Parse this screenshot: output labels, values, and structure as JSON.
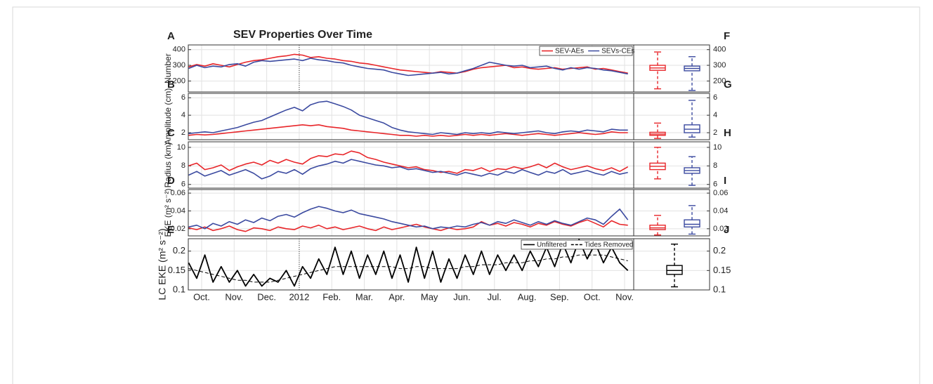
{
  "chart_data": [
    {
      "type": "line",
      "title": "SEV Properties Over Time",
      "letter": "A",
      "box_letter": "F",
      "ylabel": "Number",
      "ylim": [
        130,
        430
      ],
      "yticks": [
        200,
        300,
        400
      ],
      "xlim": [
        0.59,
        14.28
      ],
      "xticks": [
        {
          "value": 1,
          "label": "Oct."
        },
        {
          "value": 2,
          "label": "Nov."
        },
        {
          "value": 3,
          "label": "Dec."
        },
        {
          "value": 4,
          "label": "2012"
        },
        {
          "value": 5,
          "label": "Feb."
        },
        {
          "value": 6,
          "label": "Mar."
        },
        {
          "value": 7,
          "label": "Apr."
        },
        {
          "value": 8,
          "label": "May"
        },
        {
          "value": 9,
          "label": "Jun."
        },
        {
          "value": 10,
          "label": "Jul."
        },
        {
          "value": 11,
          "label": "Aug."
        },
        {
          "value": 12,
          "label": "Sep."
        },
        {
          "value": 13,
          "label": "Oct."
        },
        {
          "value": 14,
          "label": "Nov."
        }
      ],
      "vline": 4,
      "legend": "upper right",
      "x": [
        0.6,
        0.85,
        1.1,
        1.35,
        1.6,
        1.85,
        2.1,
        2.35,
        2.6,
        2.85,
        3.1,
        3.35,
        3.6,
        3.85,
        4.1,
        4.35,
        4.6,
        4.85,
        5.1,
        5.35,
        5.6,
        5.85,
        6.1,
        6.35,
        6.6,
        6.85,
        7.1,
        7.35,
        7.6,
        7.85,
        8.1,
        8.35,
        8.6,
        8.85,
        9.1,
        9.35,
        9.6,
        9.85,
        10.1,
        10.35,
        10.6,
        10.85,
        11.1,
        11.35,
        11.6,
        11.85,
        12.1,
        12.35,
        12.6,
        12.85,
        13.1,
        13.35,
        13.6,
        13.85,
        14.1
      ],
      "series": [
        {
          "name": "SEV-AEs",
          "color": "#e8262a",
          "stats": [
            150,
            268,
            283,
            300,
            385
          ],
          "values": [
            290,
            305,
            295,
            310,
            300,
            290,
            305,
            320,
            330,
            335,
            345,
            355,
            360,
            370,
            365,
            350,
            355,
            345,
            340,
            330,
            325,
            315,
            310,
            300,
            290,
            280,
            270,
            265,
            260,
            255,
            250,
            260,
            255,
            250,
            260,
            275,
            285,
            290,
            295,
            300,
            285,
            290,
            280,
            275,
            280,
            285,
            275,
            280,
            285,
            290,
            275,
            280,
            270,
            260,
            250
          ]
        },
        {
          "name": "SEVs-CEs",
          "color": "#3b4aa0",
          "stats": [
            140,
            265,
            280,
            295,
            355
          ],
          "values": [
            280,
            300,
            285,
            295,
            290,
            305,
            310,
            295,
            320,
            330,
            325,
            330,
            335,
            340,
            330,
            345,
            335,
            330,
            320,
            315,
            300,
            290,
            280,
            275,
            270,
            255,
            245,
            235,
            240,
            245,
            250,
            255,
            245,
            250,
            265,
            280,
            300,
            320,
            310,
            300,
            295,
            300,
            285,
            290,
            295,
            280,
            270,
            285,
            275,
            285,
            280,
            270,
            265,
            255,
            245
          ]
        }
      ]
    },
    {
      "type": "line",
      "letter": "B",
      "box_letter": "G",
      "ylabel": "Amplitude (cm)",
      "ylim": [
        1.2,
        6.5
      ],
      "yticks": [
        2,
        4,
        6
      ],
      "xlim": [
        0.59,
        14.28
      ],
      "xticks": [
        1,
        2,
        3,
        4,
        5,
        6,
        7,
        8,
        9,
        10,
        11,
        12,
        13,
        14
      ],
      "x": [
        0.6,
        0.85,
        1.1,
        1.35,
        1.6,
        1.85,
        2.1,
        2.35,
        2.6,
        2.85,
        3.1,
        3.35,
        3.6,
        3.85,
        4.1,
        4.35,
        4.6,
        4.85,
        5.1,
        5.35,
        5.6,
        5.85,
        6.1,
        6.35,
        6.6,
        6.85,
        7.1,
        7.35,
        7.6,
        7.85,
        8.1,
        8.35,
        8.6,
        8.85,
        9.1,
        9.35,
        9.6,
        9.85,
        10.1,
        10.35,
        10.6,
        10.85,
        11.1,
        11.35,
        11.6,
        11.85,
        12.1,
        12.35,
        12.6,
        12.85,
        13.1,
        13.35,
        13.6,
        13.85,
        14.1
      ],
      "series": [
        {
          "color": "#e8262a",
          "stats": [
            1.35,
            1.7,
            1.85,
            2.05,
            3.1
          ],
          "values": [
            1.7,
            1.8,
            1.75,
            1.8,
            1.9,
            2.0,
            2.1,
            2.2,
            2.3,
            2.4,
            2.5,
            2.6,
            2.7,
            2.8,
            2.9,
            2.8,
            2.9,
            2.7,
            2.6,
            2.5,
            2.3,
            2.2,
            2.1,
            2.0,
            1.9,
            1.8,
            1.7,
            1.7,
            1.6,
            1.7,
            1.6,
            1.7,
            1.6,
            1.7,
            1.8,
            1.7,
            1.8,
            1.7,
            1.8,
            1.9,
            1.8,
            1.7,
            1.8,
            1.9,
            1.8,
            1.7,
            1.8,
            1.9,
            2.0,
            1.9,
            1.8,
            1.9,
            2.1,
            2.0,
            2.0
          ]
        },
        {
          "color": "#3b4aa0",
          "stats": [
            1.5,
            2.0,
            2.4,
            2.9,
            5.7
          ],
          "values": [
            1.9,
            2.0,
            2.1,
            2.0,
            2.2,
            2.4,
            2.6,
            2.9,
            3.2,
            3.4,
            3.8,
            4.2,
            4.6,
            4.9,
            4.5,
            5.2,
            5.5,
            5.6,
            5.3,
            5.0,
            4.6,
            4.0,
            3.7,
            3.4,
            3.1,
            2.6,
            2.3,
            2.1,
            2.0,
            1.9,
            1.8,
            2.0,
            1.9,
            1.8,
            2.0,
            1.9,
            2.0,
            1.9,
            2.1,
            2.0,
            1.9,
            2.0,
            2.1,
            2.2,
            2.0,
            1.9,
            2.1,
            2.2,
            2.1,
            2.3,
            2.2,
            2.1,
            2.4,
            2.3,
            2.3
          ]
        }
      ]
    },
    {
      "type": "line",
      "letter": "C",
      "box_letter": "H",
      "ylabel": "Radius (km)",
      "ylim": [
        5.6,
        10.6
      ],
      "yticks": [
        6,
        8,
        10
      ],
      "xlim": [
        0.59,
        14.28
      ],
      "xticks": [
        1,
        2,
        3,
        4,
        5,
        6,
        7,
        8,
        9,
        10,
        11,
        12,
        13,
        14
      ],
      "x": [
        0.6,
        0.85,
        1.1,
        1.35,
        1.6,
        1.85,
        2.1,
        2.35,
        2.6,
        2.85,
        3.1,
        3.35,
        3.6,
        3.85,
        4.1,
        4.35,
        4.6,
        4.85,
        5.1,
        5.35,
        5.6,
        5.85,
        6.1,
        6.35,
        6.6,
        6.85,
        7.1,
        7.35,
        7.6,
        7.85,
        8.1,
        8.35,
        8.6,
        8.85,
        9.1,
        9.35,
        9.6,
        9.85,
        10.1,
        10.35,
        10.6,
        10.85,
        11.1,
        11.35,
        11.6,
        11.85,
        12.1,
        12.35,
        12.6,
        12.85,
        13.1,
        13.35,
        13.6,
        13.85,
        14.1
      ],
      "series": [
        {
          "color": "#e8262a",
          "stats": [
            6.6,
            7.6,
            7.95,
            8.3,
            10.0
          ],
          "values": [
            8.0,
            8.3,
            7.6,
            7.8,
            8.1,
            7.5,
            7.9,
            8.2,
            8.4,
            8.1,
            8.6,
            8.3,
            8.7,
            8.4,
            8.2,
            8.8,
            9.1,
            9.0,
            9.3,
            9.2,
            9.6,
            9.4,
            8.9,
            8.7,
            8.4,
            8.2,
            8.0,
            7.8,
            7.9,
            7.6,
            7.5,
            7.3,
            7.4,
            7.2,
            7.6,
            7.5,
            7.8,
            7.4,
            7.7,
            7.6,
            7.9,
            7.7,
            7.9,
            8.2,
            7.8,
            8.3,
            7.9,
            7.6,
            7.8,
            8.0,
            7.7,
            7.5,
            7.8,
            7.4,
            7.9
          ]
        },
        {
          "color": "#3b4aa0",
          "stats": [
            5.9,
            7.2,
            7.5,
            7.8,
            9.0
          ],
          "values": [
            7.0,
            7.4,
            6.9,
            7.2,
            7.5,
            7.0,
            7.3,
            7.6,
            7.2,
            6.6,
            6.9,
            7.4,
            7.2,
            7.6,
            7.1,
            7.7,
            8.0,
            8.2,
            8.5,
            8.3,
            8.7,
            8.5,
            8.3,
            8.1,
            8.0,
            7.8,
            7.9,
            7.6,
            7.7,
            7.5,
            7.3,
            7.4,
            7.2,
            7.0,
            7.3,
            7.1,
            6.9,
            7.2,
            7.0,
            7.4,
            7.2,
            7.6,
            7.3,
            7.0,
            7.4,
            7.2,
            7.6,
            7.1,
            7.3,
            7.5,
            7.2,
            7.0,
            7.4,
            7.1,
            7.3
          ]
        }
      ]
    },
    {
      "type": "line",
      "letter": "D",
      "box_letter": "I",
      "ylabel": "EKE (m² s⁻²)",
      "ylim": [
        0.012,
        0.064
      ],
      "yticks": [
        0.02,
        0.04,
        0.06
      ],
      "xlim": [
        0.59,
        14.28
      ],
      "xticks": [
        1,
        2,
        3,
        4,
        5,
        6,
        7,
        8,
        9,
        10,
        11,
        12,
        13,
        14
      ],
      "x": [
        0.6,
        0.85,
        1.1,
        1.35,
        1.6,
        1.85,
        2.1,
        2.35,
        2.6,
        2.85,
        3.1,
        3.35,
        3.6,
        3.85,
        4.1,
        4.35,
        4.6,
        4.85,
        5.1,
        5.35,
        5.6,
        5.85,
        6.1,
        6.35,
        6.6,
        6.85,
        7.1,
        7.35,
        7.6,
        7.85,
        8.1,
        8.35,
        8.6,
        8.85,
        9.1,
        9.35,
        9.6,
        9.85,
        10.1,
        10.35,
        10.6,
        10.85,
        11.1,
        11.35,
        11.6,
        11.85,
        12.1,
        12.35,
        12.6,
        12.85,
        13.1,
        13.35,
        13.6,
        13.85,
        14.1
      ],
      "series": [
        {
          "color": "#e8262a",
          "stats": [
            0.013,
            0.019,
            0.021,
            0.024,
            0.035
          ],
          "values": [
            0.021,
            0.019,
            0.022,
            0.018,
            0.02,
            0.023,
            0.019,
            0.017,
            0.021,
            0.02,
            0.018,
            0.022,
            0.02,
            0.019,
            0.023,
            0.021,
            0.024,
            0.02,
            0.022,
            0.019,
            0.021,
            0.023,
            0.02,
            0.018,
            0.022,
            0.019,
            0.021,
            0.023,
            0.025,
            0.022,
            0.02,
            0.018,
            0.021,
            0.019,
            0.02,
            0.022,
            0.028,
            0.024,
            0.026,
            0.023,
            0.027,
            0.025,
            0.022,
            0.026,
            0.024,
            0.028,
            0.025,
            0.023,
            0.027,
            0.03,
            0.026,
            0.022,
            0.029,
            0.025,
            0.024
          ]
        },
        {
          "color": "#3b4aa0",
          "stats": [
            0.014,
            0.022,
            0.025,
            0.03,
            0.046
          ],
          "values": [
            0.022,
            0.024,
            0.02,
            0.026,
            0.023,
            0.028,
            0.025,
            0.03,
            0.027,
            0.032,
            0.029,
            0.034,
            0.036,
            0.033,
            0.038,
            0.042,
            0.045,
            0.043,
            0.04,
            0.038,
            0.041,
            0.037,
            0.035,
            0.033,
            0.031,
            0.028,
            0.026,
            0.024,
            0.022,
            0.023,
            0.02,
            0.022,
            0.021,
            0.023,
            0.022,
            0.025,
            0.027,
            0.024,
            0.028,
            0.026,
            0.03,
            0.027,
            0.024,
            0.028,
            0.025,
            0.029,
            0.026,
            0.024,
            0.028,
            0.032,
            0.03,
            0.025,
            0.034,
            0.042,
            0.03
          ]
        }
      ]
    },
    {
      "type": "line",
      "letter": "E",
      "box_letter": "J",
      "ylabel": "LC EKE (m² s⁻²)",
      "ylim": [
        0.1,
        0.232
      ],
      "yticks": [
        0.1,
        0.15,
        0.2
      ],
      "xlim": [
        0.59,
        14.28
      ],
      "xticks": [
        {
          "value": 1,
          "label": "Oct."
        },
        {
          "value": 2,
          "label": "Nov."
        },
        {
          "value": 3,
          "label": "Dec."
        },
        {
          "value": 4,
          "label": "2012"
        },
        {
          "value": 5,
          "label": "Feb."
        },
        {
          "value": 6,
          "label": "Mar."
        },
        {
          "value": 7,
          "label": "Apr."
        },
        {
          "value": 8,
          "label": "May"
        },
        {
          "value": 9,
          "label": "Jun."
        },
        {
          "value": 10,
          "label": "Jul."
        },
        {
          "value": 11,
          "label": "Aug."
        },
        {
          "value": 12,
          "label": "Sep."
        },
        {
          "value": 13,
          "label": "Oct."
        },
        {
          "value": 14,
          "label": "Nov."
        }
      ],
      "vline": 4,
      "legend": "upper right",
      "x": [
        0.6,
        0.85,
        1.1,
        1.35,
        1.6,
        1.85,
        2.1,
        2.35,
        2.6,
        2.85,
        3.1,
        3.35,
        3.6,
        3.85,
        4.1,
        4.35,
        4.6,
        4.85,
        5.1,
        5.35,
        5.6,
        5.85,
        6.1,
        6.35,
        6.6,
        6.85,
        7.1,
        7.35,
        7.6,
        7.85,
        8.1,
        8.35,
        8.6,
        8.85,
        9.1,
        9.35,
        9.6,
        9.85,
        10.1,
        10.35,
        10.6,
        10.85,
        11.1,
        11.35,
        11.6,
        11.85,
        12.1,
        12.35,
        12.6,
        12.85,
        13.1,
        13.35,
        13.6,
        13.85,
        14.1
      ],
      "series": [
        {
          "name": "Unfiltered",
          "color": "#000000",
          "stats": [
            0.108,
            0.14,
            0.15,
            0.163,
            0.218
          ],
          "values": [
            0.17,
            0.13,
            0.19,
            0.12,
            0.16,
            0.12,
            0.15,
            0.11,
            0.14,
            0.11,
            0.13,
            0.12,
            0.15,
            0.11,
            0.16,
            0.13,
            0.18,
            0.14,
            0.21,
            0.14,
            0.2,
            0.13,
            0.19,
            0.14,
            0.2,
            0.13,
            0.19,
            0.12,
            0.21,
            0.13,
            0.2,
            0.12,
            0.18,
            0.13,
            0.19,
            0.14,
            0.2,
            0.14,
            0.19,
            0.15,
            0.19,
            0.15,
            0.2,
            0.16,
            0.21,
            0.16,
            0.22,
            0.17,
            0.23,
            0.18,
            0.22,
            0.17,
            0.21,
            0.17,
            0.15
          ]
        },
        {
          "name": "Tides Removed",
          "color": "#000000",
          "dash": true,
          "values": [
            0.155,
            0.15,
            0.145,
            0.14,
            0.135,
            0.13,
            0.125,
            0.125,
            0.12,
            0.12,
            0.12,
            0.125,
            0.13,
            0.135,
            0.14,
            0.145,
            0.15,
            0.155,
            0.16,
            0.16,
            0.16,
            0.16,
            0.16,
            0.16,
            0.16,
            0.16,
            0.155,
            0.155,
            0.16,
            0.16,
            0.155,
            0.155,
            0.155,
            0.155,
            0.16,
            0.16,
            0.165,
            0.165,
            0.165,
            0.17,
            0.17,
            0.17,
            0.175,
            0.175,
            0.18,
            0.18,
            0.185,
            0.185,
            0.19,
            0.19,
            0.19,
            0.19,
            0.185,
            0.18,
            0.175
          ]
        }
      ]
    }
  ]
}
